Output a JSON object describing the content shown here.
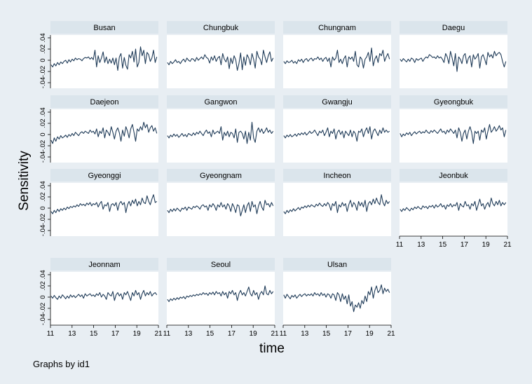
{
  "figure": {
    "ylabel": "Sensitivity",
    "xlabel": "time",
    "note": "Graphs by id1"
  },
  "colors": {
    "background": "#e8eef3",
    "panel": "#ffffff",
    "strip": "#dbe5ec",
    "line": "#1f3b58",
    "axis": "#000000"
  },
  "chart_data": {
    "type": "line",
    "layout": "small-multiples",
    "xlim": [
      11,
      21
    ],
    "ylim": [
      -0.05,
      0.045
    ],
    "xticks": [
      11,
      13,
      15,
      17,
      19,
      21
    ],
    "yticks": [
      -0.04,
      -0.02,
      0,
      0.02,
      0.04
    ],
    "ytick_labels": [
      "-.04",
      "-.02",
      "0",
      ".02",
      ".04"
    ],
    "grid": false,
    "panels": [
      {
        "name": "Busan",
        "values": [
          -0.008,
          -0.012,
          -0.006,
          -0.01,
          -0.004,
          -0.008,
          -0.003,
          -0.006,
          -0.002,
          0,
          -0.005,
          0.001,
          -0.003,
          0.002,
          -0.001,
          0.004,
          0.001,
          0.003,
          0.002,
          -0.001,
          0.003,
          0.005,
          0.004,
          0.006,
          0.002,
          0.005,
          0.001,
          0.018,
          -0.012,
          0.008,
          -0.004,
          0.004,
          0.015,
          -0.004,
          0.006,
          -0.006,
          0.002,
          -0.005,
          0.004,
          -0.008,
          0.004,
          -0.018,
          0.006,
          0.012,
          -0.014,
          0.005,
          -0.009,
          -0.016,
          0.01,
          0.004,
          0.016,
          -0.003,
          0.02,
          -0.012,
          -0.004,
          0.024,
          0.008,
          0.018,
          -0.006,
          0.014,
          0.01,
          -0.002,
          0.004,
          0.018,
          -0.004,
          0.006
        ]
      },
      {
        "name": "Chungbuk",
        "values": [
          -0.004,
          -0.008,
          -0.002,
          -0.006,
          -0.003,
          0.001,
          -0.004,
          -0.002,
          -0.006,
          -0.001,
          0.002,
          -0.003,
          0.004,
          0,
          -0.002,
          0.003,
          0.002,
          -0.002,
          0.005,
          0,
          0.003,
          0.006,
          0.002,
          0.01,
          0.005,
          0.003,
          -0.005,
          0.006,
          0,
          0.008,
          -0.002,
          0.004,
          0.007,
          -0.008,
          0.012,
          0.002,
          -0.003,
          0.006,
          -0.015,
          0.004,
          -0.006,
          0.008,
          0.001,
          -0.018,
          -0.006,
          0.013,
          -0.017,
          0.006,
          -0.009,
          0.01,
          0.004,
          -0.008,
          0.012,
          0.002,
          -0.014,
          0.016,
          0.006,
          0.002,
          -0.008,
          0.018,
          0.006,
          -0.004,
          0.008,
          0.015,
          -0.002,
          0.004
        ]
      },
      {
        "name": "Chungnam",
        "values": [
          -0.002,
          -0.006,
          -0.001,
          -0.004,
          -0.003,
          0,
          -0.005,
          -0.002,
          -0.006,
          0.001,
          -0.002,
          0.002,
          -0.004,
          0.001,
          0.003,
          -0.002,
          0.002,
          0.004,
          -0.001,
          0.003,
          0.002,
          0.006,
          0.001,
          0.004,
          -0.002,
          0.003,
          0.005,
          -0.002,
          0.004,
          -0.012,
          0.006,
          0,
          0.004,
          0.018,
          -0.004,
          0.002,
          -0.006,
          0.003,
          0.008,
          -0.012,
          0.006,
          0.002,
          0.006,
          -0.002,
          0.016,
          -0.008,
          -0.012,
          0.006,
          0.002,
          -0.014,
          0.002,
          0.006,
          0.014,
          -0.002,
          0.022,
          -0.01,
          0.002,
          0.008,
          -0.004,
          0.012,
          0.008,
          0.018,
          -0.002,
          0.006,
          0.012,
          0.002
        ]
      },
      {
        "name": "Daegu",
        "values": [
          0.002,
          -0.002,
          0.003,
          0,
          -0.003,
          0.002,
          -0.002,
          0.004,
          0.002,
          -0.004,
          0.003,
          0,
          0.002,
          0.004,
          -0.002,
          0.003,
          0.006,
          0.004,
          0.01,
          0.008,
          0.005,
          0.006,
          0.003,
          0.008,
          0.004,
          0.006,
          0.002,
          -0.004,
          0.012,
          0.006,
          -0.006,
          0.016,
          0.004,
          -0.01,
          0.012,
          -0.02,
          0.006,
          0.002,
          -0.006,
          0.008,
          0.012,
          -0.006,
          0.004,
          0.008,
          -0.012,
          0.01,
          0.002,
          0.006,
          0.012,
          -0.014,
          0.006,
          0.01,
          0.002,
          -0.008,
          0.014,
          0.006,
          0.01,
          0.004,
          0.016,
          0.008,
          0.012,
          0.014,
          0.01,
          -0.002,
          -0.012,
          -0.002
        ]
      },
      {
        "name": "Daejeon",
        "values": [
          -0.01,
          -0.016,
          -0.006,
          -0.012,
          -0.004,
          -0.008,
          -0.002,
          -0.006,
          -0.004,
          -0.001,
          -0.005,
          0,
          -0.003,
          0.002,
          -0.002,
          0.004,
          0.001,
          -0.002,
          0.003,
          0.005,
          0.002,
          0.006,
          0.004,
          0.002,
          0.008,
          0.004,
          0.006,
          0.001,
          0.01,
          -0.004,
          0.006,
          0.002,
          0.012,
          -0.006,
          0.008,
          0.004,
          -0.002,
          0.014,
          0.004,
          -0.008,
          0.006,
          0.012,
          0.003,
          -0.012,
          0.008,
          -0.003,
          0.014,
          0.006,
          -0.006,
          0.01,
          0.018,
          0.004,
          -0.012,
          0.01,
          0.006,
          0.014,
          0.008,
          0.022,
          0.012,
          0.018,
          0.004,
          0.012,
          0.016,
          0.006,
          0.012,
          0.002
        ]
      },
      {
        "name": "Gangwon",
        "values": [
          -0.002,
          -0.006,
          -0.001,
          -0.004,
          0.001,
          -0.003,
          0,
          -0.005,
          -0.002,
          0.002,
          -0.003,
          0,
          -0.004,
          0.002,
          0,
          -0.002,
          0.003,
          -0.001,
          0.004,
          0.001,
          0.006,
          0.002,
          -0.002,
          0.004,
          0.008,
          0.002,
          0.005,
          -0.004,
          0.008,
          0.001,
          0.004,
          0.006,
          0.002,
          0.014,
          -0.01,
          0.004,
          -0.002,
          0.006,
          -0.004,
          0.004,
          0.002,
          -0.006,
          0.01,
          -0.014,
          0.004,
          0.006,
          0.002,
          -0.008,
          0.006,
          -0.016,
          0.004,
          -0.01,
          0.022,
          -0.006,
          -0.014,
          0.006,
          0.012,
          0.004,
          0.01,
          0.002,
          0.006,
          0.012,
          0.004,
          0.008,
          0.002,
          0.006
        ]
      },
      {
        "name": "Gwangju",
        "values": [
          -0.002,
          -0.006,
          -0.001,
          -0.004,
          0,
          -0.004,
          -0.002,
          0.001,
          -0.003,
          0.002,
          -0.001,
          0.003,
          0,
          0.004,
          -0.001,
          0.002,
          0.006,
          0.002,
          0.004,
          0.008,
          0.003,
          -0.002,
          0.006,
          0.003,
          0.008,
          -0.002,
          0.004,
          0.012,
          -0.004,
          0.006,
          0.002,
          0.01,
          -0.008,
          0.004,
          0.008,
          0,
          0.006,
          -0.006,
          0.006,
          0.002,
          -0.002,
          0.008,
          -0.004,
          0.006,
          0.002,
          -0.012,
          0.006,
          0.004,
          0.01,
          -0.004,
          0.006,
          0.012,
          0.002,
          0.014,
          -0.008,
          0.006,
          0.01,
          0.004,
          -0.002,
          0.008,
          0.002,
          0.012,
          0.004,
          0.008,
          0.004,
          0.006
        ]
      },
      {
        "name": "Gyeongbuk",
        "values": [
          0.002,
          -0.004,
          0.001,
          -0.002,
          0.003,
          0,
          0.004,
          -0.002,
          0.002,
          0.005,
          0.001,
          0.004,
          0.006,
          0.002,
          0.005,
          0.003,
          0.008,
          0.004,
          0.002,
          0.007,
          0.004,
          0.008,
          0.005,
          0.002,
          0.006,
          0.01,
          0.004,
          0.006,
          0.001,
          0.008,
          0.004,
          0.01,
          0.006,
          0.002,
          0.008,
          -0.006,
          0.012,
          0.004,
          -0.012,
          0.002,
          0.008,
          -0.008,
          0.006,
          0.014,
          0.004,
          -0.016,
          0.006,
          0.002,
          0.006,
          -0.01,
          0.008,
          0.004,
          0.012,
          -0.008,
          0.006,
          0.018,
          0.004,
          0.008,
          0.014,
          0.006,
          0.01,
          0.016,
          0.008,
          0.012,
          -0.004,
          0.008
        ]
      },
      {
        "name": "Gyeonggi",
        "values": [
          -0.006,
          -0.01,
          -0.004,
          -0.008,
          -0.002,
          -0.006,
          -0.001,
          -0.004,
          0,
          -0.003,
          0.002,
          -0.001,
          0.003,
          0.001,
          0.004,
          0.002,
          0.006,
          0.003,
          0.008,
          0.005,
          0.007,
          0.004,
          0.009,
          0.006,
          0.01,
          0.004,
          0.008,
          0.006,
          0.01,
          0.002,
          0.008,
          0.012,
          -0.002,
          0.006,
          0.004,
          0.01,
          -0.006,
          0.006,
          0.008,
          0.004,
          0.01,
          -0.004,
          0.008,
          0.012,
          0.006,
          0.01,
          -0.008,
          0.006,
          0.012,
          0.004,
          0.014,
          0.008,
          0.016,
          0.004,
          0.012,
          0.006,
          0.018,
          0.01,
          0.008,
          0.022,
          0.012,
          0.006,
          0.016,
          0.024,
          0.01,
          0.012
        ]
      },
      {
        "name": "Gyeongnam",
        "values": [
          -0.004,
          -0.008,
          -0.002,
          -0.006,
          -0.001,
          -0.005,
          0,
          -0.003,
          -0.006,
          0,
          -0.002,
          0.002,
          -0.004,
          0.002,
          0,
          -0.002,
          0.003,
          0.001,
          0.004,
          0.002,
          -0.002,
          0.004,
          0.006,
          0.002,
          0.004,
          -0.004,
          0.006,
          0.002,
          0.008,
          0.004,
          -0.004,
          0.006,
          0.002,
          0.01,
          0.002,
          0.006,
          -0.002,
          0.008,
          0.004,
          -0.006,
          0.008,
          0.002,
          -0.008,
          0.006,
          0.004,
          -0.014,
          -0.004,
          0.006,
          -0.008,
          0.004,
          0.01,
          -0.006,
          0.012,
          0.002,
          0.006,
          -0.01,
          0.004,
          0.012,
          0.002,
          -0.004,
          0.014,
          0.006,
          0.008,
          0.002,
          0.01,
          0.004
        ]
      },
      {
        "name": "Incheon",
        "values": [
          -0.006,
          -0.01,
          -0.004,
          -0.008,
          -0.003,
          -0.006,
          -0.001,
          -0.005,
          -0.002,
          0.001,
          -0.003,
          0.002,
          0,
          0.004,
          0.001,
          0.005,
          0.002,
          0.006,
          0.004,
          0.002,
          0.007,
          0.004,
          0.009,
          0.005,
          0.003,
          0.008,
          0.004,
          0.01,
          0.006,
          -0.004,
          0.008,
          0.004,
          0.012,
          -0.008,
          0.006,
          0.002,
          0.01,
          0.004,
          0.008,
          -0.006,
          0.006,
          0.014,
          0.002,
          0.01,
          0.006,
          -0.004,
          0.012,
          0.004,
          0.01,
          0.002,
          0.014,
          -0.006,
          0.008,
          0.012,
          0.006,
          0.016,
          0.008,
          0.018,
          0.01,
          0.006,
          0.024,
          0.01,
          0.004,
          0.014,
          0.008,
          0.012
        ]
      },
      {
        "name": "Jeonbuk",
        "values": [
          -0.002,
          -0.006,
          -0.001,
          -0.004,
          0.001,
          -0.002,
          -0.005,
          0,
          -0.003,
          0.002,
          -0.001,
          0.003,
          0,
          -0.002,
          0.004,
          0.001,
          0.003,
          -0.001,
          0.004,
          0.002,
          0.005,
          0,
          0.006,
          0.002,
          0.004,
          0.008,
          0.002,
          0.005,
          -0.002,
          0.006,
          0.003,
          0.008,
          0.002,
          0.006,
          0.004,
          0.01,
          -0.004,
          0.008,
          0.004,
          0.002,
          0.012,
          0.004,
          0.006,
          -0.002,
          0.008,
          0.004,
          0.012,
          -0.004,
          0.006,
          0.016,
          0.004,
          0.008,
          -0.002,
          0.006,
          0.01,
          0.002,
          0.018,
          0.008,
          0.004,
          0.012,
          0.006,
          0.014,
          0.004,
          0.01,
          0.006,
          0.01
        ]
      },
      {
        "name": "Jeonnam",
        "values": [
          0.002,
          -0.002,
          0.003,
          -0.001,
          -0.004,
          0.002,
          -0.002,
          0.004,
          0.001,
          -0.003,
          0.002,
          -0.002,
          0.004,
          0,
          0.003,
          -0.001,
          0.002,
          0.005,
          0.001,
          0.004,
          -0.002,
          0.006,
          0.002,
          0.004,
          0.006,
          0.002,
          0.004,
          0.001,
          0.006,
          0.003,
          0.008,
          0,
          0.005,
          0.002,
          -0.004,
          0.008,
          0.004,
          0.002,
          0.01,
          -0.006,
          0.004,
          0.008,
          0.002,
          0.006,
          -0.004,
          0.008,
          0.004,
          0.01,
          0.002,
          -0.006,
          0.008,
          0.002,
          0.012,
          0.004,
          0.008,
          -0.004,
          0.006,
          0.012,
          0.002,
          0.008,
          0.004,
          0.01,
          0.002,
          0.006,
          0.008,
          0.004
        ]
      },
      {
        "name": "Seoul",
        "values": [
          -0.004,
          -0.008,
          -0.003,
          -0.006,
          -0.002,
          -0.005,
          -0.001,
          -0.004,
          0,
          -0.002,
          0.001,
          -0.003,
          0.002,
          0,
          0.003,
          0.001,
          0.004,
          0.002,
          0.005,
          0.003,
          0.006,
          0.004,
          0.008,
          0.005,
          0.007,
          0.003,
          0.008,
          0.005,
          0.009,
          0.004,
          0.01,
          0.006,
          0.008,
          0.002,
          0.01,
          0.004,
          0.008,
          -0.002,
          0.01,
          0.006,
          0.012,
          0.004,
          0.008,
          -0.006,
          0.006,
          0.012,
          0.004,
          0.008,
          0.002,
          0.01,
          0.018,
          0.006,
          0.002,
          0.012,
          0.004,
          0.008,
          -0.004,
          0.006,
          0.01,
          0.004,
          0.02,
          0.006,
          0.004,
          0.012,
          0.006,
          0.01
        ]
      },
      {
        "name": "Ulsan",
        "values": [
          0.004,
          -0.002,
          0.005,
          0.001,
          -0.003,
          0.003,
          0,
          0.004,
          -0.002,
          0.002,
          0.005,
          0.001,
          0.004,
          0.006,
          0.002,
          0.005,
          0.003,
          0.006,
          0.002,
          0.008,
          0.004,
          0.006,
          0.002,
          0.008,
          0.003,
          0.006,
          0,
          0.006,
          0.004,
          -0.002,
          0.006,
          0.004,
          -0.006,
          0.008,
          0.004,
          -0.008,
          0.006,
          -0.004,
          0.002,
          -0.012,
          0.004,
          -0.016,
          -0.008,
          -0.026,
          -0.014,
          -0.018,
          -0.01,
          -0.02,
          -0.006,
          -0.012,
          0.002,
          -0.008,
          0.01,
          0.004,
          0.018,
          -0.002,
          0.012,
          0.02,
          0.008,
          0.012,
          0.022,
          0.006,
          0.016,
          0.01,
          0.014,
          0.008
        ]
      }
    ]
  }
}
